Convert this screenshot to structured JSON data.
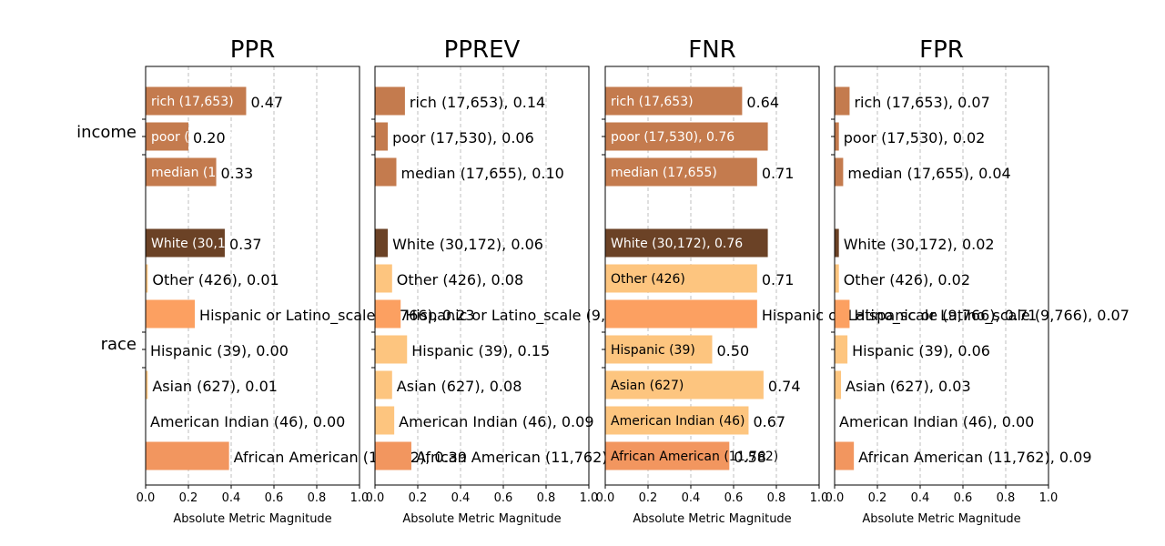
{
  "chart_data": {
    "type": "bar",
    "orientation": "horizontal",
    "xlabel": "Absolute Metric Magnitude",
    "xlim": [
      0,
      1.0
    ],
    "xticks": [
      "0.0",
      "0.2",
      "0.4",
      "0.6",
      "0.8",
      "1.0"
    ],
    "grid": "x-dashed",
    "groups": [
      {
        "name": "income",
        "items": [
          {
            "label": "rich (17,653)",
            "color_scheme": "income"
          },
          {
            "label": "poor (17,530)",
            "color_scheme": "income"
          },
          {
            "label": "median (17,655)",
            "color_scheme": "income"
          }
        ]
      },
      {
        "name": "race",
        "items": [
          {
            "label": "White (30,172)"
          },
          {
            "label": "Other (426)"
          },
          {
            "label": "Hispanic or Latino_scale (9,766)"
          },
          {
            "label": "Hispanic (39)"
          },
          {
            "label": "Asian (627)"
          },
          {
            "label": "American Indian (46)"
          },
          {
            "label": "African American (11,762)"
          }
        ]
      }
    ],
    "panels": [
      {
        "title": "PPR",
        "values": [
          0.47,
          0.2,
          0.33,
          0.37,
          0.01,
          0.23,
          0.0,
          0.01,
          0.0,
          0.39
        ],
        "value_labels": [
          "0.47",
          "0.20",
          "0.33",
          "0.37",
          "0.01",
          "",
          "0.00",
          "0.01",
          "0.00",
          ""
        ],
        "colors": [
          "#c47b4e",
          "#c47b4e",
          "#c47b4e",
          "#6b4226",
          "#fdc57f",
          "#fca061",
          "#fdc57f",
          "#fdc57f",
          "#fdc57f",
          "#f2965f"
        ]
      },
      {
        "title": "PPREV",
        "values": [
          0.14,
          0.06,
          0.1,
          0.06,
          0.08,
          0.12,
          0.15,
          0.08,
          0.09,
          0.17
        ],
        "value_labels": [
          "0.14",
          "0.06",
          "0.10",
          "0.06",
          "0.08",
          "",
          "0.15",
          "0.08",
          "0.09",
          ""
        ],
        "colors": [
          "#c47b4e",
          "#c47b4e",
          "#c47b4e",
          "#6b4226",
          "#fdc57f",
          "#fca061",
          "#fdc57f",
          "#fdc57f",
          "#fdc57f",
          "#f2965f"
        ]
      },
      {
        "title": "FNR",
        "values": [
          0.64,
          0.76,
          0.71,
          0.76,
          0.71,
          0.71,
          0.5,
          0.74,
          0.67,
          0.58
        ],
        "value_labels": [
          "0.64",
          "0.76",
          "0.71",
          "0.76",
          "0.71",
          "",
          "0.50",
          "0.74",
          "0.67",
          "0.58"
        ],
        "colors": [
          "#c47b4e",
          "#c47b4e",
          "#c47b4e",
          "#6b4226",
          "#fdc57f",
          "#fca061",
          "#fdc57f",
          "#fdc57f",
          "#fdc57f",
          "#f2965f"
        ]
      },
      {
        "title": "FPR",
        "values": [
          0.07,
          0.02,
          0.04,
          0.02,
          0.02,
          0.07,
          0.06,
          0.03,
          0.0,
          0.09
        ],
        "value_labels": [
          "0.07",
          "0.02",
          "0.04",
          "0.02",
          "0.02",
          "0.07",
          "0.06",
          "0.03",
          "0.00",
          "0.09"
        ],
        "colors": [
          "#c47b4e",
          "#c47b4e",
          "#c47b4e",
          "#6b4226",
          "#fdc57f",
          "#fca061",
          "#fdc57f",
          "#fdc57f",
          "#fdc57f",
          "#f2965f"
        ]
      }
    ],
    "label_texts": {
      "PPR": [
        {
          "in": "rich (17,653)",
          "out": "0.47"
        },
        {
          "in": "poor (17,530)",
          "out": "0.20"
        },
        {
          "in": "median (17,655)",
          "out": "0.33"
        },
        {
          "in": "White (30,172)",
          "out": "0.37"
        },
        {
          "in": "",
          "out": "Other (426), 0.01"
        },
        {
          "in": "",
          "out": "Hispanic or Latino_scale (9,766), 0.23"
        },
        {
          "in": "",
          "out": "Hispanic (39), 0.00"
        },
        {
          "in": "",
          "out": "Asian (627), 0.01"
        },
        {
          "in": "",
          "out": "American Indian (46), 0.00"
        },
        {
          "in": "",
          "out": "African American (11,762), 0.39"
        }
      ],
      "PPREV": [
        {
          "in": "",
          "out": "rich (17,653), 0.14"
        },
        {
          "in": "",
          "out": "poor (17,530), 0.06"
        },
        {
          "in": "",
          "out": "median (17,655), 0.10"
        },
        {
          "in": "",
          "out": "White (30,172), 0.06"
        },
        {
          "in": "",
          "out": "Other (426), 0.08"
        },
        {
          "in": "",
          "out": "Hispanic or Latino_scale (9,766), 0.12"
        },
        {
          "in": "",
          "out": "Hispanic (39), 0.15"
        },
        {
          "in": "",
          "out": "Asian (627), 0.08"
        },
        {
          "in": "",
          "out": "American Indian (46), 0.09"
        },
        {
          "in": "",
          "out": "African American (11,762), 0.17"
        }
      ],
      "FNR": [
        {
          "in": "rich (17,653)",
          "out": "0.64"
        },
        {
          "in": "poor (17,530), 0.76",
          "out": ""
        },
        {
          "in": "median (17,655)",
          "out": "0.71"
        },
        {
          "in": "White (30,172), 0.76",
          "out": ""
        },
        {
          "in": "Other (426)",
          "out": "0.71"
        },
        {
          "in": "",
          "out": "Hispanic or Latino_scale (9,766), 0.71"
        },
        {
          "in": "Hispanic (39)",
          "out": "0.50"
        },
        {
          "in": "Asian (627)",
          "out": "0.74"
        },
        {
          "in": "American Indian (46)",
          "out": "0.67"
        },
        {
          "in": "African American (11,762)",
          "out": "0.58"
        }
      ],
      "FPR": [
        {
          "in": "",
          "out": "rich (17,653), 0.07"
        },
        {
          "in": "",
          "out": "poor (17,530), 0.02"
        },
        {
          "in": "",
          "out": "median (17,655), 0.04"
        },
        {
          "in": "",
          "out": "White (30,172), 0.02"
        },
        {
          "in": "",
          "out": "Other (426), 0.02"
        },
        {
          "in": "",
          "out": "Hispanic or Latino_scale (9,766), 0.07"
        },
        {
          "in": "",
          "out": "Hispanic (39), 0.06"
        },
        {
          "in": "",
          "out": "Asian (627), 0.03"
        },
        {
          "in": "",
          "out": "American Indian (46), 0.00"
        },
        {
          "in": "",
          "out": "African American (11,762), 0.09"
        }
      ]
    }
  }
}
